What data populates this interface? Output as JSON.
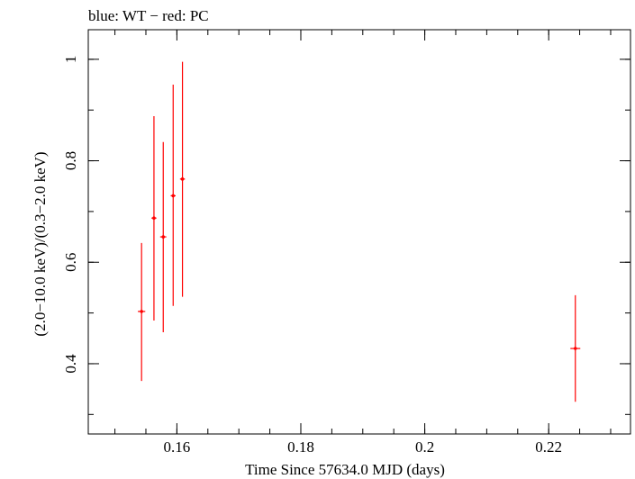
{
  "chart_data": {
    "type": "scatter",
    "title": "blue: WT − red: PC",
    "xlabel": "Time Since 57634.0 MJD (days)",
    "ylabel": "(2.0−10.0 keV)/(0.3−2.0 keV)",
    "xlim": [
      0.1457,
      0.2332
    ],
    "ylim": [
      0.2615,
      1.0583
    ],
    "x_ticks": [
      {
        "value": 0.16,
        "label": "0.16"
      },
      {
        "value": 0.18,
        "label": "0.18"
      },
      {
        "value": 0.2,
        "label": "0.2"
      },
      {
        "value": 0.22,
        "label": "0.22"
      }
    ],
    "y_ticks": [
      {
        "value": 0.4,
        "label": "0.4"
      },
      {
        "value": 0.6,
        "label": "0.6"
      },
      {
        "value": 0.8,
        "label": "0.8"
      },
      {
        "value": 1.0,
        "label": "1"
      }
    ],
    "x_minor_step": 0.005,
    "y_minor_step": 0.1,
    "series": [
      {
        "color": "#ff0000",
        "points": [
          {
            "x": 0.1543,
            "xerr": 0.0006,
            "y": 0.503,
            "ylo": 0.366,
            "yhi": 0.638
          },
          {
            "x": 0.1563,
            "xerr": 0.0004,
            "y": 0.687,
            "ylo": 0.485,
            "yhi": 0.888
          },
          {
            "x": 0.1578,
            "xerr": 0.0005,
            "y": 0.65,
            "ylo": 0.462,
            "yhi": 0.837
          },
          {
            "x": 0.1594,
            "xerr": 0.0004,
            "y": 0.731,
            "ylo": 0.514,
            "yhi": 0.95
          },
          {
            "x": 0.1609,
            "xerr": 0.0004,
            "y": 0.764,
            "ylo": 0.532,
            "yhi": 0.995
          },
          {
            "x": 0.2243,
            "xerr": 0.0008,
            "y": 0.43,
            "ylo": 0.325,
            "yhi": 0.535
          }
        ]
      }
    ]
  }
}
